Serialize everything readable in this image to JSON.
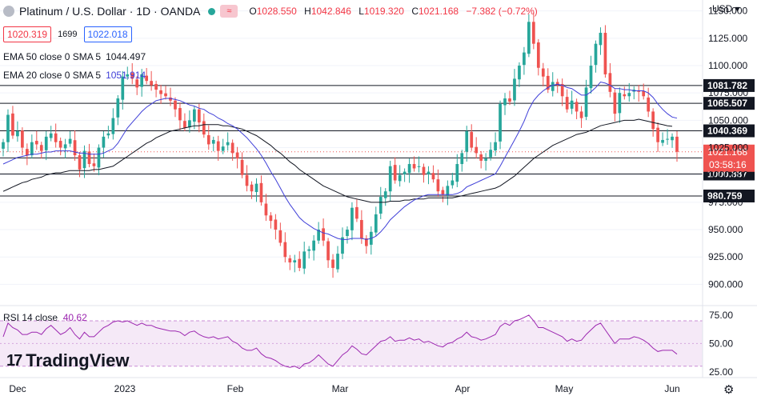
{
  "header": {
    "title": "Platinum / U.S. Dollar · 1D · OANDA",
    "ohlc": [
      {
        "k": "O",
        "v": "1028.550"
      },
      {
        "k": "H",
        "v": "1042.846"
      },
      {
        "k": "L",
        "v": "1019.320"
      },
      {
        "k": "C",
        "v": "1021.168"
      },
      {
        "k": "",
        "v": "−7.382 (−0.72%)"
      }
    ]
  },
  "quote": {
    "bid": "1020.319",
    "spread": "1699",
    "ask": "1022.018"
  },
  "indicators": [
    {
      "label": "EMA 50 close 0 SMA 5",
      "value": "1044.497",
      "color": "#131722"
    },
    {
      "label": "EMA 20 close 0 SMA 5",
      "value": "1051.914",
      "color": "#3f3fd8"
    }
  ],
  "rsi": {
    "label": "RSI 14 close",
    "value": "40.62",
    "color": "#9c27b0"
  },
  "currency": "USD",
  "brand": "TradingView",
  "chart_data": {
    "type": "candlestick",
    "x_labels": [
      "Dec",
      "2023",
      "Feb",
      "Mar",
      "Apr",
      "May",
      "Jun"
    ],
    "y_ticks": [
      900,
      925,
      950,
      975,
      1000,
      1025,
      1050,
      1075,
      1100,
      1125,
      1150
    ],
    "y_tick_labels": [
      "900.000",
      "925.000",
      "950.000",
      "975.000",
      "1000.000",
      "1025.000",
      "1050.000",
      "1075.000",
      "1100.000",
      "1125.000",
      "1150.000"
    ],
    "ylim": [
      882,
      1160
    ],
    "last_price": 1021.168,
    "last_price_label": "1021.168",
    "countdown": "03:58:16",
    "levels": [
      {
        "value": 1081.782,
        "label": "1081.782"
      },
      {
        "value": 1065.507,
        "label": "1065.507"
      },
      {
        "value": 1040.369,
        "label": "1040.369"
      },
      {
        "value": 1015.596,
        "label": "1015.596"
      },
      {
        "value": 1000.887,
        "label": "1000.887"
      },
      {
        "value": 980.759,
        "label": "980.759"
      }
    ],
    "close": [
      1030,
      1055,
      1036,
      1040,
      1025,
      1018,
      1030,
      1028,
      1022,
      1035,
      1038,
      1030,
      1025,
      1028,
      1033,
      1018,
      1005,
      1022,
      1010,
      1008,
      1025,
      1035,
      1038,
      1052,
      1070,
      1090,
      1092,
      1088,
      1080,
      1092,
      1086,
      1082,
      1078,
      1074,
      1072,
      1068,
      1060,
      1050,
      1043,
      1050,
      1060,
      1048,
      1037,
      1028,
      1032,
      1022,
      1026,
      1030,
      1020,
      1015,
      1000,
      990,
      985,
      992,
      975,
      963,
      958,
      950,
      938,
      925,
      920,
      922,
      915,
      930,
      932,
      940,
      950,
      940,
      922,
      915,
      928,
      943,
      950,
      970,
      960,
      942,
      935,
      948,
      964,
      980,
      985,
      1008,
      995,
      1000,
      1003,
      1010,
      1006,
      1008,
      1000,
      1003,
      996,
      985,
      982,
      990,
      995,
      1010,
      1020,
      1040,
      1025,
      1020,
      1013,
      1015,
      1023,
      1030,
      1065,
      1070,
      1067,
      1088,
      1100,
      1112,
      1140,
      1120,
      1098,
      1090,
      1078,
      1085,
      1082,
      1072,
      1060,
      1068,
      1058,
      1052,
      1080,
      1100,
      1120,
      1130,
      1092,
      1076,
      1056,
      1075,
      1072,
      1075,
      1078,
      1076,
      1072,
      1058,
      1042,
      1030,
      1032,
      1033,
      1035,
      1021.168
    ],
    "ema20": [
      1010,
      1012,
      1014,
      1016,
      1017,
      1018,
      1019,
      1019,
      1020,
      1021,
      1021,
      1022,
      1022,
      1022,
      1022,
      1021,
      1020,
      1020,
      1019,
      1019,
      1019,
      1020,
      1022,
      1024,
      1029,
      1036,
      1043,
      1048,
      1053,
      1058,
      1062,
      1065,
      1068,
      1069,
      1070,
      1070,
      1069,
      1068,
      1066,
      1064,
      1063,
      1061,
      1060,
      1057,
      1055,
      1052,
      1050,
      1047,
      1045,
      1042,
      1038,
      1034,
      1029,
      1024,
      1018,
      1011,
      1003,
      996,
      988,
      980,
      973,
      967,
      961,
      957,
      954,
      951,
      949,
      947,
      946,
      944,
      942,
      941,
      941,
      942,
      942,
      942,
      941,
      942,
      944,
      948,
      953,
      959,
      963,
      967,
      971,
      974,
      977,
      979,
      981,
      982,
      982,
      982,
      982,
      982,
      982,
      983,
      985,
      989,
      991,
      993,
      995,
      997,
      999,
      1001,
      1008,
      1016,
      1024,
      1032,
      1040,
      1049,
      1060,
      1068,
      1073,
      1077,
      1080,
      1082,
      1083,
      1082,
      1080,
      1079,
      1076,
      1073,
      1073,
      1076,
      1080,
      1085,
      1084,
      1082,
      1079,
      1079,
      1078,
      1078,
      1077,
      1077,
      1077,
      1075,
      1071,
      1065,
      1060,
      1056,
      1053,
      1051.914
    ],
    "ema50": [
      985,
      987,
      989,
      991,
      993,
      994,
      996,
      997,
      998,
      1000,
      1001,
      1002,
      1002,
      1003,
      1004,
      1004,
      1004,
      1004,
      1004,
      1005,
      1005,
      1006,
      1007,
      1008,
      1011,
      1014,
      1017,
      1020,
      1023,
      1026,
      1029,
      1031,
      1034,
      1036,
      1038,
      1040,
      1041,
      1042,
      1043,
      1044,
      1045,
      1045,
      1046,
      1046,
      1046,
      1046,
      1045,
      1045,
      1044,
      1043,
      1042,
      1040,
      1038,
      1036,
      1033,
      1030,
      1027,
      1023,
      1020,
      1016,
      1012,
      1009,
      1005,
      1002,
      999,
      996,
      993,
      990,
      988,
      986,
      984,
      982,
      980,
      979,
      978,
      977,
      976,
      975,
      975,
      975,
      975,
      976,
      976,
      976,
      977,
      977,
      978,
      978,
      978,
      979,
      979,
      979,
      979,
      979,
      979,
      980,
      981,
      982,
      983,
      984,
      985,
      986,
      987,
      988,
      990,
      993,
      996,
      999,
      1003,
      1007,
      1011,
      1015,
      1018,
      1021,
      1024,
      1027,
      1029,
      1031,
      1033,
      1035,
      1037,
      1038,
      1039,
      1041,
      1043,
      1045,
      1046,
      1047,
      1048,
      1049,
      1050,
      1050,
      1050,
      1051,
      1050,
      1049,
      1048,
      1047,
      1046,
      1045,
      1044.497
    ],
    "rsi_ticks": [
      25,
      50,
      75
    ],
    "rsi_ylim": [
      20,
      82
    ],
    "rsi_band": [
      30,
      70
    ],
    "rsi": [
      56,
      68,
      64,
      62,
      58,
      58,
      60,
      60,
      58,
      63,
      66,
      62,
      58,
      60,
      64,
      58,
      54,
      60,
      56,
      56,
      60,
      64,
      66,
      69,
      70,
      69,
      70,
      68,
      66,
      68,
      66,
      66,
      64,
      63,
      62,
      61,
      61,
      60,
      57,
      60,
      61,
      58,
      56,
      55,
      56,
      54,
      55,
      56,
      52,
      50,
      46,
      44,
      44,
      46,
      41,
      38,
      37,
      35,
      32,
      30,
      29,
      30,
      28,
      32,
      33,
      36,
      40,
      36,
      32,
      30,
      35,
      40,
      43,
      48,
      45,
      41,
      40,
      44,
      48,
      52,
      53,
      56,
      52,
      53,
      53,
      55,
      53,
      54,
      51,
      52,
      50,
      48,
      47,
      50,
      51,
      54,
      56,
      60,
      56,
      55,
      53,
      54,
      56,
      58,
      65,
      68,
      66,
      70,
      71,
      73,
      75,
      70,
      64,
      64,
      62,
      60,
      58,
      56,
      52,
      54,
      52,
      53,
      58,
      62,
      66,
      68,
      62,
      56,
      50,
      54,
      54,
      54,
      56,
      55,
      53,
      50,
      46,
      43,
      44,
      44,
      44,
      40.62
    ]
  }
}
